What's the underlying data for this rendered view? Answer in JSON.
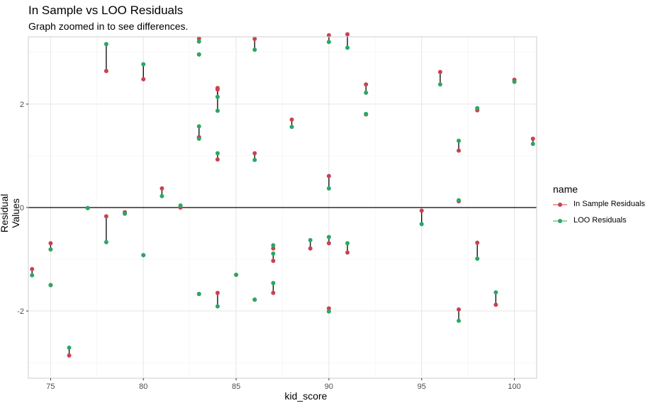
{
  "title": "In Sample vs LOO Residuals",
  "subtitle": "Graph zoomed in to see differences.",
  "colors": {
    "in_sample": "#cb4150",
    "loo": "#2aa764",
    "segment": "#000000",
    "panel_border": "#cccccc",
    "grid_major": "#e5e5e5",
    "grid_minor": "#f2f2f2"
  },
  "legend": {
    "title": "name",
    "items": [
      {
        "label": "In Sample Residuals",
        "color": "#cb4150"
      },
      {
        "label": "LOO Residuals",
        "color": "#2aa764"
      }
    ]
  },
  "chart_data": {
    "type": "scatter",
    "title": "In Sample vs LOO Residuals",
    "subtitle": "Graph zoomed in to see differences.",
    "xlabel": "kid_score",
    "ylabel": "Residual Values",
    "xlim": [
      73.8,
      101.2
    ],
    "ylim": [
      -3.3,
      3.3
    ],
    "x_ticks": [
      75,
      80,
      85,
      90,
      95,
      100
    ],
    "x_tick_labels": [
      "75",
      "80",
      "85",
      "90",
      "95",
      "100"
    ],
    "y_ticks": [
      -2,
      0,
      2
    ],
    "y_tick_labels": [
      "-2",
      "0",
      "2"
    ],
    "hline": 0,
    "grid": true,
    "legend_position": "right",
    "series": [
      {
        "name": "In Sample Residuals",
        "color": "#cb4150"
      },
      {
        "name": "LOO Residuals",
        "color": "#2aa764"
      }
    ],
    "pairs": [
      [
        74,
        -1.19,
        -1.31
      ],
      [
        75,
        -0.69,
        -0.81
      ],
      [
        75,
        -1.5,
        -1.5
      ],
      [
        76,
        -2.86,
        -2.71
      ],
      [
        77,
        -0.01,
        -0.01
      ],
      [
        78,
        2.64,
        3.16
      ],
      [
        78,
        -0.17,
        -0.67
      ],
      [
        79,
        -0.09,
        -0.12
      ],
      [
        80,
        2.48,
        2.77
      ],
      [
        80,
        -0.92,
        -0.92
      ],
      [
        81,
        0.37,
        0.22
      ],
      [
        82,
        0.0,
        0.04
      ],
      [
        83,
        3.27,
        3.21
      ],
      [
        83,
        1.35,
        1.33
      ],
      [
        83,
        1.36,
        1.57
      ],
      [
        83,
        2.96,
        2.96
      ],
      [
        83,
        -1.67,
        -1.67
      ],
      [
        84,
        2.31,
        2.14
      ],
      [
        84,
        2.28,
        1.87
      ],
      [
        84,
        0.93,
        1.05
      ],
      [
        84,
        -1.65,
        -1.91
      ],
      [
        85,
        -1.3,
        -1.3
      ],
      [
        86,
        3.26,
        3.05
      ],
      [
        86,
        1.05,
        0.92
      ],
      [
        86,
        -1.78,
        -1.78
      ],
      [
        87,
        -0.79,
        -0.73
      ],
      [
        87,
        -1.03,
        -0.89
      ],
      [
        87,
        -1.65,
        -1.46
      ],
      [
        88,
        1.7,
        1.56
      ],
      [
        89,
        -0.79,
        -0.63
      ],
      [
        90,
        3.33,
        3.2
      ],
      [
        90,
        0.61,
        0.37
      ],
      [
        90,
        -0.69,
        -0.57
      ],
      [
        90,
        -1.95,
        -2.01
      ],
      [
        91,
        3.35,
        3.09
      ],
      [
        91,
        -0.87,
        -0.69
      ],
      [
        92,
        2.38,
        2.22
      ],
      [
        92,
        1.8,
        1.81
      ],
      [
        95,
        -0.06,
        -0.32
      ],
      [
        96,
        2.62,
        2.38
      ],
      [
        97,
        1.1,
        1.29
      ],
      [
        97,
        0.12,
        0.14
      ],
      [
        97,
        -1.97,
        -2.19
      ],
      [
        98,
        1.88,
        1.92
      ],
      [
        98,
        -0.68,
        -0.99
      ],
      [
        99,
        -1.88,
        -1.64
      ],
      [
        100,
        2.47,
        2.43
      ],
      [
        101,
        1.33,
        1.23
      ]
    ]
  }
}
